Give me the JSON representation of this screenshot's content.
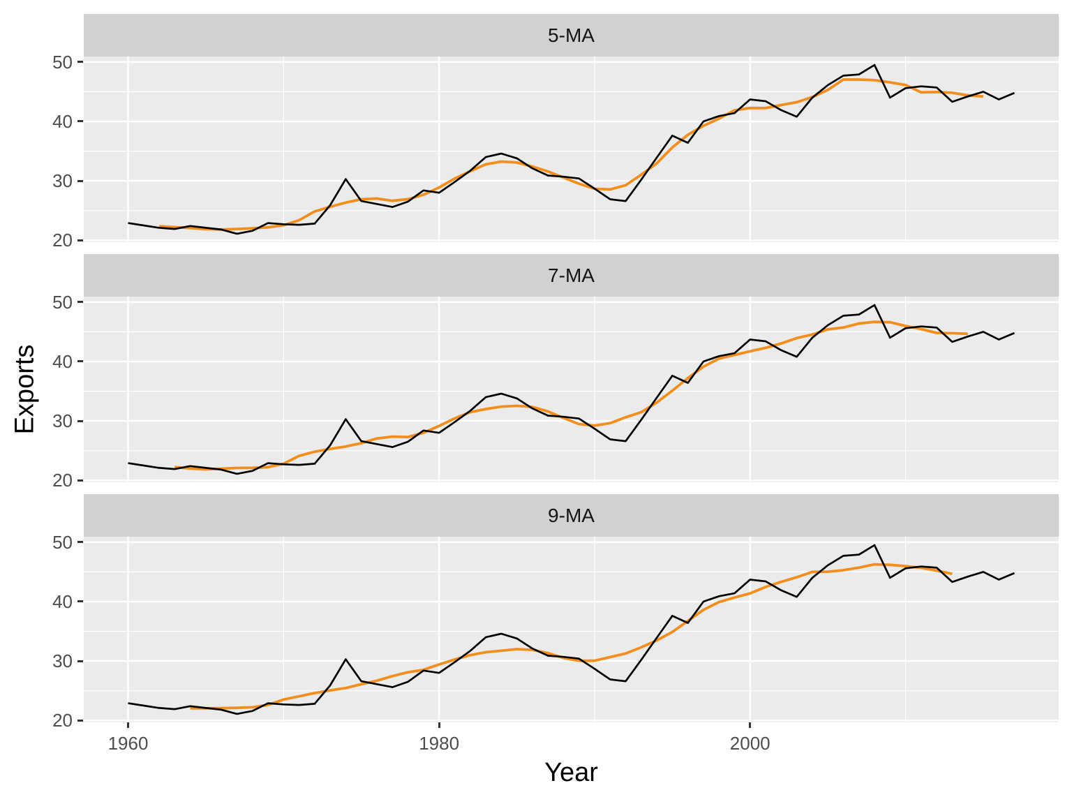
{
  "axes": {
    "y_title": "Exports",
    "x_title": "Year"
  },
  "chart_data": {
    "type": "line",
    "title": "",
    "xlabel": "Year",
    "ylabel": "Exports",
    "x_ticks": [
      1960,
      1980,
      2000
    ],
    "x_minor_ticks": [
      1970,
      1990,
      2010
    ],
    "y_ticks": [
      20,
      30,
      40,
      50
    ],
    "y_minor_ticks": [
      25,
      35,
      45
    ],
    "xlim": [
      1957.15,
      2019.85
    ],
    "ylim": [
      19.7,
      50.9
    ],
    "grid": "white major+minor gridlines on gray panel, ggplot2 style",
    "legend": "none",
    "facets": [
      {
        "label": "5-MA",
        "window": 5
      },
      {
        "label": "7-MA",
        "window": 7
      },
      {
        "label": "9-MA",
        "window": 9
      }
    ],
    "series_note": "Each facet repeats the same annual Exports series (black line) overlaid with a centered moving average (orange) whose window length is given by the facet label.",
    "x": [
      1960,
      1961,
      1962,
      1963,
      1964,
      1965,
      1966,
      1967,
      1968,
      1969,
      1970,
      1971,
      1972,
      1973,
      1974,
      1975,
      1976,
      1977,
      1978,
      1979,
      1980,
      1981,
      1982,
      1983,
      1984,
      1985,
      1986,
      1987,
      1988,
      1989,
      1990,
      1991,
      1992,
      1993,
      1994,
      1995,
      1996,
      1997,
      1998,
      1999,
      2000,
      2001,
      2002,
      2003,
      2004,
      2005,
      2006,
      2007,
      2008,
      2009,
      2010,
      2011,
      2012,
      2013,
      2014,
      2015,
      2016,
      2017
    ],
    "exports": [
      22.9,
      22.5,
      22.1,
      21.9,
      22.4,
      22.1,
      21.8,
      21.1,
      21.6,
      22.9,
      22.7,
      22.6,
      22.8,
      25.9,
      30.3,
      26.6,
      26.1,
      25.6,
      26.5,
      28.4,
      28.0,
      29.8,
      31.7,
      34.0,
      34.6,
      33.8,
      32.1,
      30.9,
      30.7,
      30.4,
      28.7,
      26.9,
      26.6,
      30.2,
      33.9,
      37.6,
      36.4,
      40.0,
      40.9,
      41.4,
      43.7,
      43.4,
      41.9,
      40.8,
      44.0,
      46.1,
      47.7,
      47.9,
      49.5,
      44.0,
      45.6,
      45.9,
      45.7,
      43.3,
      44.2,
      45.0,
      43.7,
      44.8
    ],
    "colors": {
      "exports_line": "#000000",
      "ma_line": "#F28E1E",
      "panel_bg": "#EBEBEB",
      "strip_bg": "#D1D1D1",
      "grid": "#FFFFFF",
      "tick_mark": "#333333",
      "tick_label": "#4D4D4D",
      "axis_title": "#000000"
    }
  }
}
